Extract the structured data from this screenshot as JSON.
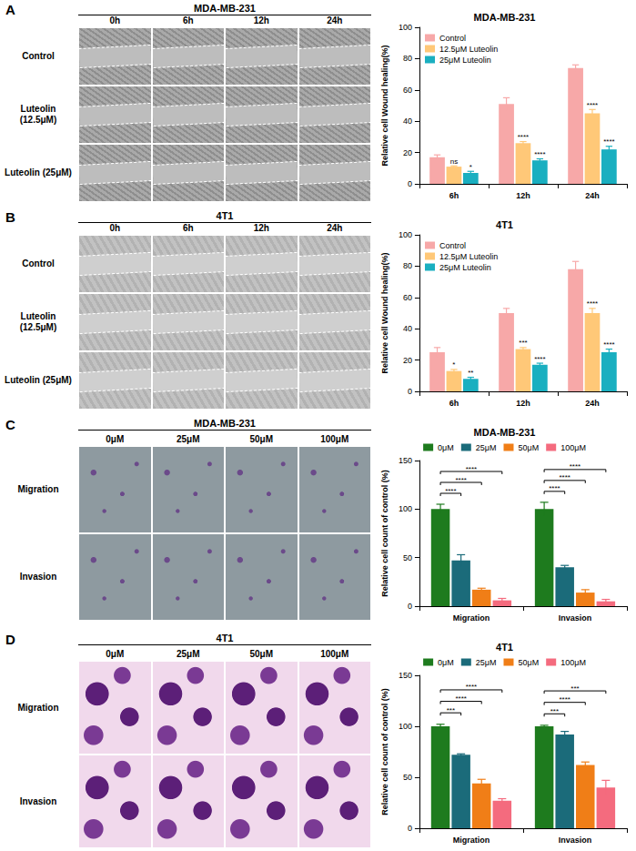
{
  "image_panels": [
    {
      "label": "A",
      "title": "MDA-MB-231",
      "columns": [
        "0h",
        "6h",
        "12h",
        "24h"
      ],
      "rows": [
        "Control",
        "Luteolin (12.5μM)",
        "Luteolin (25μM)"
      ]
    },
    {
      "label": "B",
      "title": "4T1",
      "columns": [
        "0h",
        "6h",
        "12h",
        "24h"
      ],
      "rows": [
        "Control",
        "Luteolin (12.5μM)",
        "Luteolin (25μM)"
      ]
    },
    {
      "label": "C",
      "title": "MDA-MB-231",
      "columns": [
        "0μM",
        "25μM",
        "50μM",
        "100μM"
      ],
      "rows": [
        "Migration",
        "Invasion"
      ]
    },
    {
      "label": "D",
      "title": "4T1",
      "columns": [
        "0μM",
        "25μM",
        "50μM",
        "100μM"
      ],
      "rows": [
        "Migration",
        "Invasion"
      ]
    }
  ],
  "chart_data": [
    {
      "type": "bar",
      "title": "MDA-MB-231",
      "ylabel": "Relative cell Wound healing(%)",
      "categories": [
        "6h",
        "12h",
        "24h"
      ],
      "series": [
        {
          "name": "Control",
          "color": "#F7A8A8",
          "values": [
            17,
            51,
            74
          ],
          "errors": [
            1.5,
            4,
            2
          ]
        },
        {
          "name": "12.5μM Luteolin",
          "color": "#FFC878",
          "values": [
            11,
            26,
            45
          ],
          "errors": [
            0.5,
            1,
            2.5
          ],
          "significance": [
            "ns",
            "****",
            "****"
          ]
        },
        {
          "name": "25μM Luteolin",
          "color": "#1AAFC0",
          "values": [
            7,
            15,
            22
          ],
          "errors": [
            1,
            1,
            2
          ],
          "significance": [
            "*",
            "****",
            "****"
          ]
        }
      ],
      "ylim": [
        0,
        100
      ],
      "yticks": [
        0,
        20,
        40,
        60,
        80,
        100
      ],
      "grid": false,
      "legend": "upper left"
    },
    {
      "type": "bar",
      "title": "4T1",
      "ylabel": "Relative cell Wound healing(%)",
      "categories": [
        "6h",
        "12h",
        "24h"
      ],
      "series": [
        {
          "name": "Control",
          "color": "#F7A8A8",
          "values": [
            25,
            50,
            78
          ],
          "errors": [
            3,
            3,
            5
          ]
        },
        {
          "name": "12.5μM Luteolin",
          "color": "#FFC878",
          "values": [
            13,
            27,
            50
          ],
          "errors": [
            1,
            1,
            3
          ],
          "significance": [
            "*",
            "***",
            "****"
          ]
        },
        {
          "name": "25μM Luteolin",
          "color": "#1AAFC0",
          "values": [
            8,
            17,
            25
          ],
          "errors": [
            1,
            1,
            2
          ],
          "significance": [
            "**",
            "****",
            "****"
          ]
        }
      ],
      "ylim": [
        0,
        100
      ],
      "yticks": [
        0,
        20,
        40,
        60,
        80,
        100
      ],
      "grid": false,
      "legend": "upper left"
    },
    {
      "type": "bar",
      "title": "MDA-MB-231",
      "ylabel": "Relative cell count of control (%)",
      "categories": [
        "Migration",
        "Invasion"
      ],
      "series": [
        {
          "name": "0μM",
          "color": "#1E7B1E",
          "values": [
            100,
            100
          ],
          "errors": [
            5,
            7
          ]
        },
        {
          "name": "25μM",
          "color": "#1B6B7A",
          "values": [
            47,
            40
          ],
          "errors": [
            6,
            2
          ]
        },
        {
          "name": "50μM",
          "color": "#F07E17",
          "values": [
            17,
            14
          ],
          "errors": [
            1.5,
            3
          ]
        },
        {
          "name": "100μM",
          "color": "#F46B7E",
          "values": [
            6,
            5
          ],
          "errors": [
            2,
            2
          ]
        }
      ],
      "comparisons": [
        {
          "category": "Migration",
          "from": "0μM",
          "to": "25μM",
          "label": "****"
        },
        {
          "category": "Migration",
          "from": "0μM",
          "to": "50μM",
          "label": "****"
        },
        {
          "category": "Migration",
          "from": "0μM",
          "to": "100μM",
          "label": "****"
        },
        {
          "category": "Invasion",
          "from": "0μM",
          "to": "25μM",
          "label": "****"
        },
        {
          "category": "Invasion",
          "from": "0μM",
          "to": "50μM",
          "label": "****"
        },
        {
          "category": "Invasion",
          "from": "0μM",
          "to": "100μM",
          "label": "****"
        }
      ],
      "ylim": [
        0,
        150
      ],
      "yticks": [
        0,
        50,
        100,
        150
      ],
      "grid": false,
      "legend": "top"
    },
    {
      "type": "bar",
      "title": "4T1",
      "ylabel": "Relative cell count of control (%)",
      "categories": [
        "Migration",
        "Invasion"
      ],
      "series": [
        {
          "name": "0μM",
          "color": "#1E7B1E",
          "values": [
            100,
            100
          ],
          "errors": [
            2,
            1
          ]
        },
        {
          "name": "25μM",
          "color": "#1B6B7A",
          "values": [
            72,
            92
          ],
          "errors": [
            1,
            3
          ]
        },
        {
          "name": "50μM",
          "color": "#F07E17",
          "values": [
            44,
            62
          ],
          "errors": [
            4,
            3
          ]
        },
        {
          "name": "100μM",
          "color": "#F46B7E",
          "values": [
            27,
            40
          ],
          "errors": [
            2,
            7
          ]
        }
      ],
      "comparisons": [
        {
          "category": "Migration",
          "from": "0μM",
          "to": "25μM",
          "label": "***"
        },
        {
          "category": "Migration",
          "from": "0μM",
          "to": "50μM",
          "label": "****"
        },
        {
          "category": "Migration",
          "from": "0μM",
          "to": "100μM",
          "label": "****"
        },
        {
          "category": "Invasion",
          "from": "0μM",
          "to": "25μM",
          "label": "***"
        },
        {
          "category": "Invasion",
          "from": "0μM",
          "to": "50μM",
          "label": "****"
        },
        {
          "category": "Invasion",
          "from": "0μM",
          "to": "100μM",
          "label": "***"
        }
      ],
      "ylim": [
        0,
        150
      ],
      "yticks": [
        0,
        50,
        100,
        150
      ],
      "grid": false,
      "legend": "top"
    }
  ]
}
